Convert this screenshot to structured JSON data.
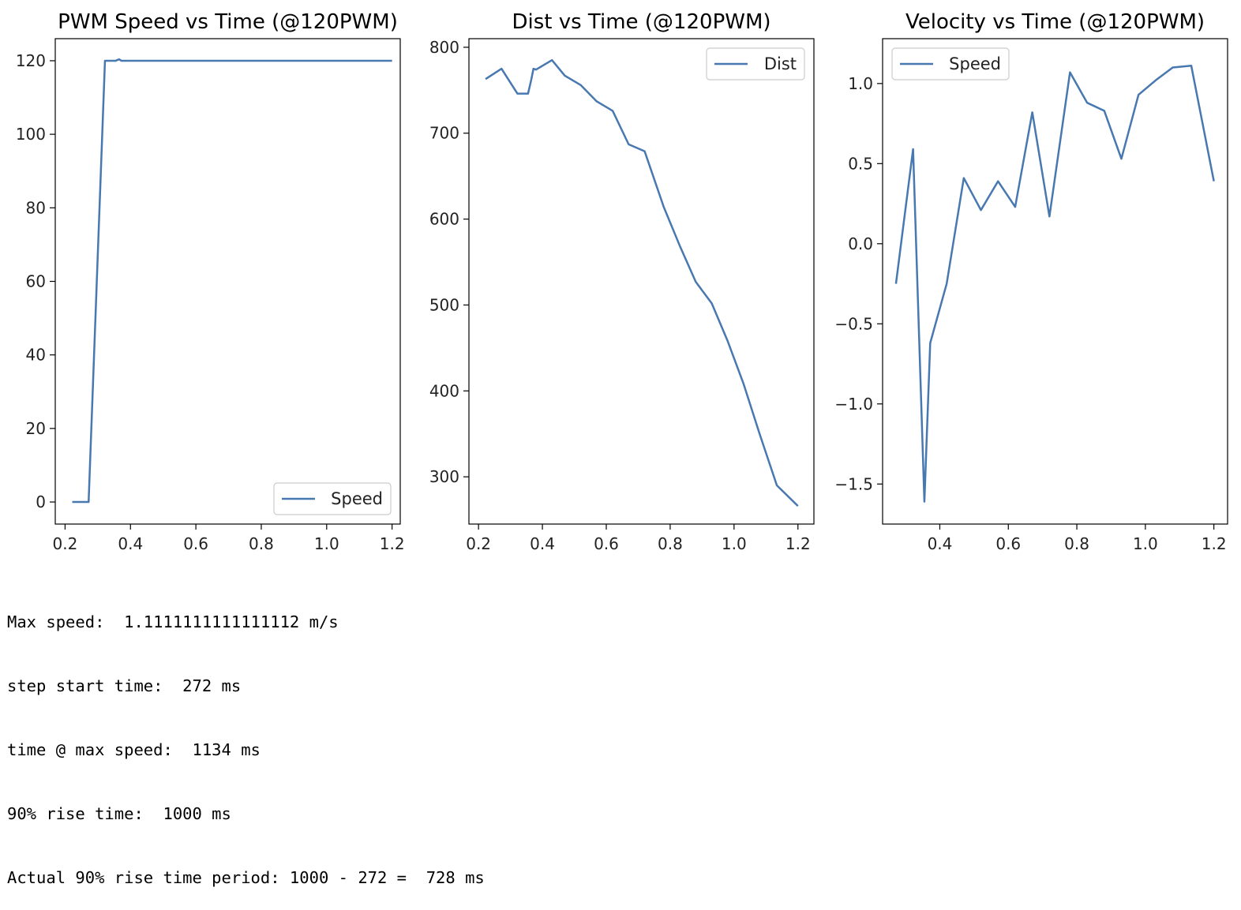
{
  "chart_data": [
    {
      "type": "line",
      "title": "PWM Speed vs Time (@120PWM)",
      "xlabel": "",
      "ylabel": "",
      "xlim": [
        0.17,
        1.225
      ],
      "ylim": [
        -6,
        126
      ],
      "xticks": [
        0.2,
        0.4,
        0.6,
        0.8,
        1.0,
        1.2
      ],
      "xtick_labels": [
        "0.2",
        "0.4",
        "0.6",
        "0.8",
        "1.0",
        "1.2"
      ],
      "yticks": [
        0,
        20,
        40,
        60,
        80,
        100,
        120
      ],
      "ytick_labels": [
        "0",
        "20",
        "40",
        "60",
        "80",
        "100",
        "120"
      ],
      "grid": false,
      "legend": "bottom-right",
      "color": "#4878b0",
      "series": [
        {
          "name": "Speed",
          "x": [
            0.222,
            0.272,
            0.322,
            0.355,
            0.365,
            0.372,
            0.5,
            0.8,
            1.0,
            1.2
          ],
          "y": [
            0,
            0,
            120,
            120,
            120.4,
            120,
            120,
            120,
            120,
            120
          ]
        }
      ]
    },
    {
      "type": "line",
      "title": "Dist vs Time (@120PWM)",
      "xlabel": "",
      "ylabel": "",
      "xlim": [
        0.17,
        1.25
      ],
      "ylim": [
        245,
        810
      ],
      "xticks": [
        0.2,
        0.4,
        0.6,
        0.8,
        1.0,
        1.2
      ],
      "xtick_labels": [
        "0.2",
        "0.4",
        "0.6",
        "0.8",
        "1.0",
        "1.2"
      ],
      "yticks": [
        300,
        400,
        500,
        600,
        700,
        800
      ],
      "ytick_labels": [
        "300",
        "400",
        "500",
        "600",
        "700",
        "800"
      ],
      "grid": false,
      "legend": "top-right",
      "color": "#4878b0",
      "series": [
        {
          "name": "Dist",
          "x": [
            0.222,
            0.272,
            0.322,
            0.355,
            0.365,
            0.372,
            0.38,
            0.43,
            0.47,
            0.52,
            0.57,
            0.62,
            0.67,
            0.72,
            0.78,
            0.83,
            0.88,
            0.93,
            0.98,
            1.03,
            1.08,
            1.134,
            1.2
          ],
          "y": [
            763,
            775,
            746,
            746,
            762,
            775,
            774,
            785,
            767,
            756,
            737,
            726,
            687,
            679,
            614,
            569,
            527,
            502,
            458,
            408,
            350,
            290,
            266
          ]
        }
      ]
    },
    {
      "type": "line",
      "title": "Velocity vs Time (@120PWM)",
      "xlabel": "",
      "ylabel": "",
      "xlim": [
        0.233,
        1.24
      ],
      "ylim": [
        -1.75,
        1.28
      ],
      "xticks": [
        0.4,
        0.6,
        0.8,
        1.0,
        1.2
      ],
      "xtick_labels": [
        "0.4",
        "0.6",
        "0.8",
        "1.0",
        "1.2"
      ],
      "yticks": [
        -1.5,
        -1.0,
        -0.5,
        0.0,
        0.5,
        1.0
      ],
      "ytick_labels": [
        "−1.5",
        "−1.0",
        "−0.5",
        "0.0",
        "0.5",
        "1.0"
      ],
      "grid": false,
      "legend": "top-left",
      "color": "#4878b0",
      "series": [
        {
          "name": "Speed",
          "x": [
            0.272,
            0.322,
            0.355,
            0.372,
            0.42,
            0.47,
            0.52,
            0.57,
            0.62,
            0.67,
            0.72,
            0.78,
            0.83,
            0.88,
            0.93,
            0.98,
            1.03,
            1.08,
            1.134,
            1.2
          ],
          "y": [
            -0.25,
            0.59,
            -1.61,
            -0.62,
            -0.25,
            0.41,
            0.21,
            0.39,
            0.23,
            0.82,
            0.17,
            1.07,
            0.88,
            0.83,
            0.53,
            0.93,
            1.02,
            1.1,
            1.111,
            0.39
          ]
        }
      ]
    }
  ],
  "output_lines": [
    "Max speed:  1.1111111111111112 m/s",
    "step start time:  272 ms",
    "time @ max speed:  1134 ms",
    "90% rise time:  1000 ms",
    "Actual 90% rise time period: 1000 - 272 =  728 ms"
  ]
}
